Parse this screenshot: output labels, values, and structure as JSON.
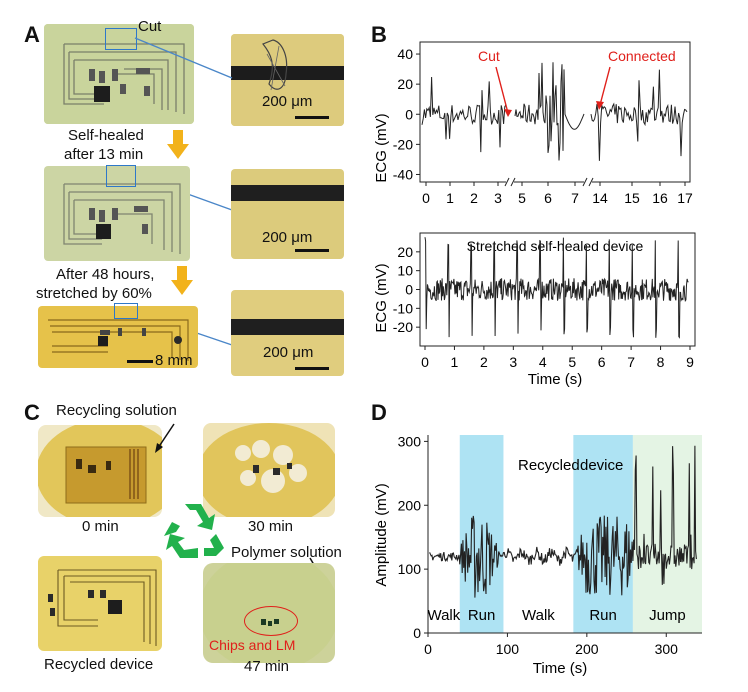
{
  "panel_a": {
    "label": "A",
    "cut_label": "Cut",
    "caption_1": "Self-healed",
    "caption_2": "after 13 min",
    "caption_3": "After 48 hours,",
    "caption_4": "stretched by 60%",
    "scale_8mm": "8 mm",
    "scale_200um": "200 μm"
  },
  "panel_b": {
    "label": "B",
    "annotation_cut": "Cut",
    "annotation_connected": "Connected",
    "annotation_color": "#e0201b",
    "bottom_title": "Stretched self-healed device"
  },
  "panel_c": {
    "label": "C",
    "recycling_solution": "Recycling solution",
    "t0": "0 min",
    "t30": "30 min",
    "polymer_solution": "Polymer solution",
    "chips_lm": "Chips and LM",
    "t47": "47 min",
    "recycled_device": "Recycled device",
    "recycle_icon": "recycle-arrows-icon",
    "recycle_color": "#22b14c"
  },
  "panel_d": {
    "label": "D",
    "title_1": "Recycled",
    "title_2": "device"
  },
  "chart_data": [
    {
      "type": "line",
      "id": "ecg-cut-connected",
      "ylabel": "ECG (mV)",
      "xlabel": "",
      "x_ticks": [
        "0",
        "1",
        "2",
        "3",
        "5",
        "6",
        "7",
        "14",
        "15",
        "16",
        "17"
      ],
      "y_ticks": [
        40,
        20,
        0,
        -20,
        -40
      ],
      "ylim": [
        -45,
        48
      ],
      "x_axis_breaks": [
        3,
        14
      ],
      "series": [
        {
          "values_note_free": true
        }
      ]
    },
    {
      "type": "line",
      "id": "ecg-stretched",
      "title": "Stretched self-healed device",
      "ylabel": "ECG (mV)",
      "xlabel": "Time (s)",
      "x_ticks": [
        0,
        1,
        2,
        3,
        4,
        5,
        6,
        7,
        8,
        9
      ],
      "y_ticks": [
        20,
        10,
        0,
        -10,
        -20
      ],
      "xlim": [
        0,
        9
      ],
      "ylim": [
        -30,
        30
      ]
    },
    {
      "type": "line",
      "id": "amplitude-recycled",
      "title": "Recycled device",
      "ylabel": "Amplitude (mV)",
      "xlabel": "Time (s)",
      "x_ticks": [
        0,
        100,
        200,
        300
      ],
      "y_ticks": [
        0,
        100,
        200,
        300
      ],
      "xlim": [
        0,
        345
      ],
      "ylim": [
        0,
        310
      ],
      "regions": [
        {
          "label": "Walk",
          "start": 0,
          "end": 40,
          "color": ""
        },
        {
          "label": "Run",
          "start": 40,
          "end": 95,
          "color": "#aee3f3"
        },
        {
          "label": "Walk",
          "start": 95,
          "end": 183,
          "color": ""
        },
        {
          "label": "Run",
          "start": 183,
          "end": 258,
          "color": "#aee3f3"
        },
        {
          "label": "Jump",
          "start": 258,
          "end": 345,
          "color": "#e4f4e4"
        }
      ]
    }
  ]
}
